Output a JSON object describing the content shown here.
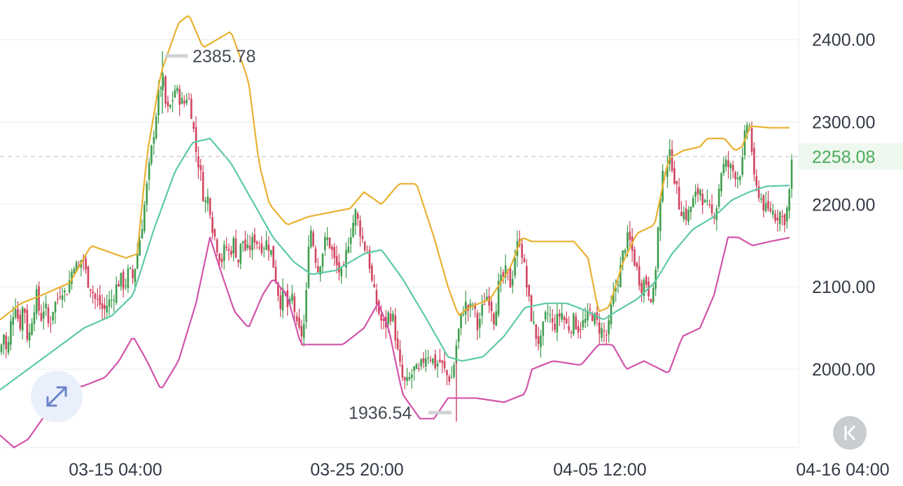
{
  "chart_data": {
    "type": "candlestick",
    "indicators": [
      "bollinger-upper",
      "bollinger-middle",
      "bollinger-lower"
    ],
    "ylim": [
      1905,
      2448
    ],
    "grid": true,
    "price_ticks": [
      "2400.00",
      "2300.00",
      "2200.00",
      "2100.00",
      "2000.00"
    ],
    "time_ticks": [
      "03-15 04:00",
      "03-25 20:00",
      "04-05 12:00",
      "04-16 04:00"
    ],
    "last_price": "2258.08",
    "high_marker": "2385.78",
    "low_marker": "1936.54",
    "colors": {
      "up": "#3e9d4d",
      "down": "#d0435e",
      "upper_band": "#e8b130",
      "middle_band": "#5dcaa6",
      "lower_band": "#d253ab",
      "grid": "#eef0f3",
      "last_price_line": "#c9ccd2",
      "last_price_text": "#4bab5a"
    },
    "candle_path": [
      [
        0,
        2020
      ],
      [
        5,
        2045
      ],
      [
        10,
        2015
      ],
      [
        16,
        2060
      ],
      [
        22,
        2080
      ],
      [
        28,
        2050
      ],
      [
        34,
        2085
      ],
      [
        40,
        2030
      ],
      [
        46,
        2065
      ],
      [
        52,
        2090
      ],
      [
        58,
        2060
      ],
      [
        64,
        2080
      ],
      [
        70,
        2050
      ],
      [
        76,
        2075
      ],
      [
        82,
        2085
      ],
      [
        88,
        2100
      ],
      [
        94,
        2090
      ],
      [
        100,
        2110
      ],
      [
        106,
        2130
      ],
      [
        112,
        2120
      ],
      [
        118,
        2140
      ],
      [
        124,
        2110
      ],
      [
        130,
        2100
      ],
      [
        136,
        2085
      ],
      [
        142,
        2080
      ],
      [
        148,
        2070
      ],
      [
        154,
        2080
      ],
      [
        160,
        2085
      ],
      [
        166,
        2100
      ],
      [
        172,
        2110
      ],
      [
        178,
        2100
      ],
      [
        184,
        2120
      ],
      [
        190,
        2110
      ],
      [
        196,
        2140
      ],
      [
        202,
        2170
      ],
      [
        208,
        2210
      ],
      [
        214,
        2250
      ],
      [
        220,
        2290
      ],
      [
        226,
        2330
      ],
      [
        232,
        2355
      ],
      [
        238,
        2310
      ],
      [
        244,
        2320
      ],
      [
        250,
        2340
      ],
      [
        256,
        2330
      ],
      [
        262,
        2320
      ],
      [
        268,
        2335
      ],
      [
        274,
        2310
      ],
      [
        280,
        2265
      ],
      [
        286,
        2240
      ],
      [
        292,
        2200
      ],
      [
        298,
        2210
      ],
      [
        304,
        2170
      ],
      [
        310,
        2150
      ],
      [
        316,
        2130
      ],
      [
        322,
        2150
      ],
      [
        328,
        2140
      ],
      [
        334,
        2155
      ],
      [
        340,
        2130
      ],
      [
        346,
        2160
      ],
      [
        352,
        2140
      ],
      [
        358,
        2150
      ],
      [
        364,
        2160
      ],
      [
        370,
        2150
      ],
      [
        376,
        2150
      ],
      [
        382,
        2155
      ],
      [
        388,
        2140
      ],
      [
        394,
        2110
      ],
      [
        400,
        2080
      ],
      [
        406,
        2095
      ],
      [
        412,
        2070
      ],
      [
        418,
        2090
      ],
      [
        424,
        2050
      ],
      [
        430,
        2040
      ],
      [
        436,
        2060
      ],
      [
        442,
        2180
      ],
      [
        448,
        2150
      ],
      [
        454,
        2120
      ],
      [
        460,
        2140
      ],
      [
        466,
        2160
      ],
      [
        472,
        2150
      ],
      [
        478,
        2130
      ],
      [
        484,
        2120
      ],
      [
        490,
        2110
      ],
      [
        496,
        2150
      ],
      [
        502,
        2170
      ],
      [
        508,
        2190
      ],
      [
        514,
        2170
      ],
      [
        520,
        2150
      ],
      [
        526,
        2140
      ],
      [
        532,
        2100
      ],
      [
        538,
        2080
      ],
      [
        544,
        2060
      ],
      [
        550,
        2050
      ],
      [
        556,
        2070
      ],
      [
        562,
        2060
      ],
      [
        568,
        2020
      ],
      [
        574,
        1990
      ],
      [
        580,
        1980
      ],
      [
        586,
        1990
      ],
      [
        592,
        2000
      ],
      [
        598,
        1995
      ],
      [
        604,
        2010
      ],
      [
        610,
        2020
      ],
      [
        616,
        2015
      ],
      [
        622,
        2005
      ],
      [
        628,
        2010
      ],
      [
        634,
        2000
      ],
      [
        640,
        1990
      ],
      [
        646,
        1990
      ],
      [
        652,
        2030
      ],
      [
        658,
        2060
      ],
      [
        664,
        2080
      ],
      [
        670,
        2070
      ],
      [
        676,
        2080
      ],
      [
        682,
        2050
      ],
      [
        688,
        2070
      ],
      [
        694,
        2090
      ],
      [
        700,
        2085
      ],
      [
        706,
        2060
      ],
      [
        712,
        2100
      ],
      [
        718,
        2110
      ],
      [
        724,
        2120
      ],
      [
        730,
        2100
      ],
      [
        736,
        2140
      ],
      [
        742,
        2160
      ],
      [
        748,
        2130
      ],
      [
        754,
        2090
      ],
      [
        760,
        2060
      ],
      [
        766,
        2040
      ],
      [
        772,
        2030
      ],
      [
        778,
        2060
      ],
      [
        784,
        2070
      ],
      [
        790,
        2050
      ],
      [
        796,
        2060
      ],
      [
        802,
        2070
      ],
      [
        808,
        2055
      ],
      [
        814,
        2050
      ],
      [
        820,
        2060
      ],
      [
        826,
        2050
      ],
      [
        832,
        2055
      ],
      [
        838,
        2060
      ],
      [
        844,
        2070
      ],
      [
        850,
        2060
      ],
      [
        856,
        2050
      ],
      [
        862,
        2045
      ],
      [
        868,
        2040
      ],
      [
        874,
        2080
      ],
      [
        880,
        2100
      ],
      [
        886,
        2120
      ],
      [
        892,
        2150
      ],
      [
        898,
        2160
      ],
      [
        904,
        2140
      ],
      [
        910,
        2120
      ],
      [
        916,
        2100
      ],
      [
        922,
        2110
      ],
      [
        928,
        2090
      ],
      [
        934,
        2090
      ],
      [
        940,
        2170
      ],
      [
        946,
        2230
      ],
      [
        952,
        2250
      ],
      [
        958,
        2260
      ],
      [
        964,
        2230
      ],
      [
        970,
        2200
      ],
      [
        976,
        2190
      ],
      [
        982,
        2185
      ],
      [
        988,
        2200
      ],
      [
        994,
        2210
      ],
      [
        1000,
        2220
      ],
      [
        1006,
        2200
      ],
      [
        1012,
        2195
      ],
      [
        1018,
        2185
      ],
      [
        1024,
        2200
      ],
      [
        1030,
        2240
      ],
      [
        1036,
        2250
      ],
      [
        1042,
        2245
      ],
      [
        1048,
        2240
      ],
      [
        1054,
        2235
      ],
      [
        1060,
        2245
      ],
      [
        1066,
        2300
      ],
      [
        1072,
        2290
      ],
      [
        1078,
        2220
      ],
      [
        1084,
        2215
      ],
      [
        1090,
        2200
      ],
      [
        1096,
        2190
      ],
      [
        1102,
        2195
      ],
      [
        1108,
        2185
      ],
      [
        1114,
        2190
      ],
      [
        1120,
        2180
      ],
      [
        1126,
        2200
      ],
      [
        1132,
        2258.08
      ]
    ],
    "upper_band": [
      [
        0,
        2060
      ],
      [
        30,
        2080
      ],
      [
        60,
        2090
      ],
      [
        100,
        2105
      ],
      [
        130,
        2150
      ],
      [
        180,
        2135
      ],
      [
        196,
        2140
      ],
      [
        210,
        2260
      ],
      [
        230,
        2360
      ],
      [
        255,
        2420
      ],
      [
        270,
        2430
      ],
      [
        290,
        2390
      ],
      [
        310,
        2400
      ],
      [
        330,
        2410
      ],
      [
        355,
        2350
      ],
      [
        370,
        2250
      ],
      [
        385,
        2200
      ],
      [
        410,
        2175
      ],
      [
        440,
        2185
      ],
      [
        470,
        2190
      ],
      [
        500,
        2195
      ],
      [
        520,
        2215
      ],
      [
        545,
        2200
      ],
      [
        570,
        2225
      ],
      [
        595,
        2225
      ],
      [
        620,
        2160
      ],
      [
        640,
        2100
      ],
      [
        655,
        2065
      ],
      [
        670,
        2075
      ],
      [
        700,
        2085
      ],
      [
        730,
        2125
      ],
      [
        745,
        2160
      ],
      [
        760,
        2155
      ],
      [
        820,
        2155
      ],
      [
        840,
        2135
      ],
      [
        855,
        2070
      ],
      [
        870,
        2075
      ],
      [
        890,
        2130
      ],
      [
        910,
        2165
      ],
      [
        935,
        2175
      ],
      [
        955,
        2255
      ],
      [
        975,
        2265
      ],
      [
        1000,
        2270
      ],
      [
        1010,
        2280
      ],
      [
        1035,
        2280
      ],
      [
        1050,
        2265
      ],
      [
        1060,
        2270
      ],
      [
        1072,
        2295
      ],
      [
        1100,
        2293
      ],
      [
        1130,
        2293
      ]
    ],
    "middle_band": [
      [
        0,
        1975
      ],
      [
        40,
        2000
      ],
      [
        80,
        2025
      ],
      [
        120,
        2050
      ],
      [
        160,
        2065
      ],
      [
        190,
        2090
      ],
      [
        220,
        2170
      ],
      [
        250,
        2240
      ],
      [
        275,
        2275
      ],
      [
        300,
        2280
      ],
      [
        330,
        2250
      ],
      [
        360,
        2205
      ],
      [
        390,
        2160
      ],
      [
        420,
        2130
      ],
      [
        445,
        2115
      ],
      [
        480,
        2120
      ],
      [
        520,
        2140
      ],
      [
        545,
        2145
      ],
      [
        575,
        2110
      ],
      [
        610,
        2060
      ],
      [
        640,
        2015
      ],
      [
        660,
        2010
      ],
      [
        690,
        2015
      ],
      [
        720,
        2040
      ],
      [
        750,
        2075
      ],
      [
        780,
        2080
      ],
      [
        810,
        2080
      ],
      [
        840,
        2070
      ],
      [
        862,
        2060
      ],
      [
        880,
        2070
      ],
      [
        910,
        2085
      ],
      [
        935,
        2105
      ],
      [
        960,
        2140
      ],
      [
        990,
        2170
      ],
      [
        1020,
        2185
      ],
      [
        1045,
        2205
      ],
      [
        1070,
        2215
      ],
      [
        1095,
        2222
      ],
      [
        1130,
        2223
      ]
    ],
    "lower_band": [
      [
        0,
        1920
      ],
      [
        20,
        1905
      ],
      [
        40,
        1915
      ],
      [
        65,
        1945
      ],
      [
        95,
        1975
      ],
      [
        120,
        1980
      ],
      [
        150,
        1990
      ],
      [
        170,
        2010
      ],
      [
        190,
        2040
      ],
      [
        210,
        2010
      ],
      [
        230,
        1975
      ],
      [
        255,
        2010
      ],
      [
        280,
        2080
      ],
      [
        300,
        2160
      ],
      [
        315,
        2120
      ],
      [
        335,
        2070
      ],
      [
        355,
        2050
      ],
      [
        375,
        2090
      ],
      [
        390,
        2110
      ],
      [
        410,
        2090
      ],
      [
        430,
        2030
      ],
      [
        460,
        2030
      ],
      [
        490,
        2030
      ],
      [
        520,
        2050
      ],
      [
        540,
        2080
      ],
      [
        555,
        2050
      ],
      [
        575,
        1970
      ],
      [
        600,
        1940
      ],
      [
        620,
        1940
      ],
      [
        640,
        1965
      ],
      [
        680,
        1965
      ],
      [
        720,
        1960
      ],
      [
        750,
        1970
      ],
      [
        760,
        2000
      ],
      [
        790,
        2010
      ],
      [
        830,
        2005
      ],
      [
        855,
        2030
      ],
      [
        875,
        2030
      ],
      [
        895,
        2000
      ],
      [
        920,
        2010
      ],
      [
        955,
        1995
      ],
      [
        975,
        2040
      ],
      [
        1000,
        2050
      ],
      [
        1020,
        2090
      ],
      [
        1040,
        2160
      ],
      [
        1055,
        2160
      ],
      [
        1075,
        2150
      ],
      [
        1100,
        2155
      ],
      [
        1130,
        2160
      ]
    ]
  },
  "controls": {
    "expand_icon": "expand-arrows-icon",
    "back_icon": "chevron-double-left-icon"
  }
}
